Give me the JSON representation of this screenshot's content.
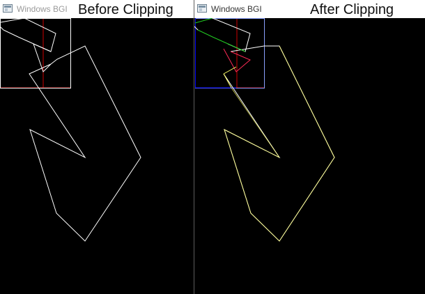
{
  "windows": {
    "left": {
      "title": "Windows BGI",
      "icon": "app-window-icon",
      "caption": "Before Clipping"
    },
    "right": {
      "title": "Windows BGI",
      "icon": "app-window-icon",
      "caption": "After Clipping"
    }
  },
  "colors": {
    "background": "#000000",
    "polygon_unclipped": "#ffffff",
    "clip_window": "#ffffff",
    "clip_window_after": "#8aa0ff",
    "reference_lines": "#cc0000",
    "clipped_edges_inside": "#ff2a55",
    "clipped_edges_partial": "#ffff66",
    "clipped_edges_green": "#22cc22",
    "clip_border_blue": "#0000ff"
  }
}
